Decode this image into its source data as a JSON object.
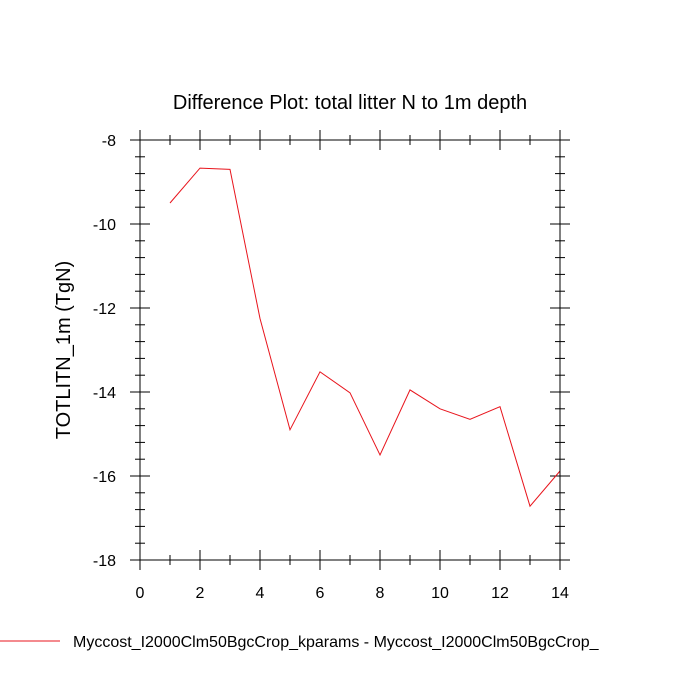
{
  "chart_data": {
    "type": "line",
    "title": "Difference Plot: total litter N to 1m depth",
    "xlabel": "",
    "ylabel": "TOTLITN_1m  (TgN)",
    "xlim": [
      0,
      14
    ],
    "ylim": [
      -18,
      -8
    ],
    "x_major_ticks": [
      0,
      2,
      4,
      6,
      8,
      10,
      12,
      14
    ],
    "x_minor_step": 1,
    "y_major_ticks": [
      -18,
      -16,
      -14,
      -12,
      -10,
      -8
    ],
    "y_minor_step": 0.4,
    "grid": false,
    "legend_position": "bottom",
    "series": [
      {
        "name": "Myccost_I2000Clm50BgcCrop_kparams - Myccost_I2000Clm50BgcCrop_",
        "color": "#e8141c",
        "x": [
          1,
          2,
          3,
          4,
          5,
          6,
          7,
          8,
          9,
          10,
          11,
          12,
          13,
          14
        ],
        "values": [
          -9.5,
          -8.67,
          -8.7,
          -12.25,
          -14.9,
          -13.52,
          -14.02,
          -15.5,
          -13.95,
          -14.4,
          -14.65,
          -14.35,
          -16.72,
          -15.88
        ]
      }
    ]
  }
}
